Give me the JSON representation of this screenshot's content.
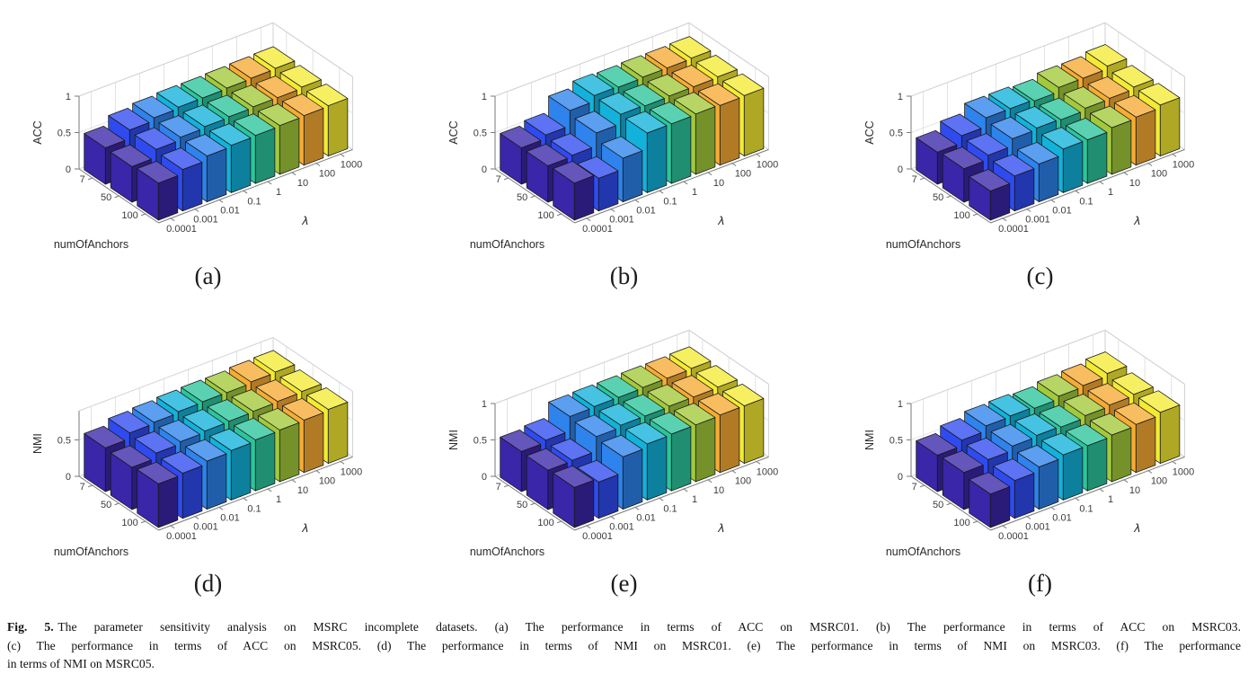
{
  "figure": {
    "label": "Fig. 5.",
    "caption_lines": [
      "The parameter sensitivity analysis on MSRC incomplete datasets. (a) The performance in terms of ACC on MSRC01. (b) The performance in terms of ACC on MSRC03.",
      "(c) The performance in terms of ACC on MSRC05. (d) The performance in terms of NMI on MSRC01. (e) The performance in terms of NMI on MSRC03. (f) The performance",
      "in terms of NMI on MSRC05."
    ]
  },
  "panels": [
    {
      "label": "(a)",
      "metric": "ACC",
      "dataset": "MSRC01"
    },
    {
      "label": "(b)",
      "metric": "ACC",
      "dataset": "MSRC03"
    },
    {
      "label": "(c)",
      "metric": "ACC",
      "dataset": "MSRC05"
    },
    {
      "label": "(d)",
      "metric": "NMI",
      "dataset": "MSRC01"
    },
    {
      "label": "(e)",
      "metric": "NMI",
      "dataset": "MSRC03"
    },
    {
      "label": "(f)",
      "metric": "NMI",
      "dataset": "MSRC05"
    }
  ],
  "colors": {
    "bar_palette": [
      "#3a26a8",
      "#2f4bf0",
      "#2e83ec",
      "#12b2da",
      "#2cc59b",
      "#a2c93a",
      "#f6ab33",
      "#f3ea34"
    ],
    "grid": "#e3e3e3",
    "box_light": "#d2d2d2",
    "box_dark": "#7a7a7a",
    "tick_text": "#3c3c3c",
    "label_text": "#2a2a2a",
    "bar_edge": "#161616",
    "background": "#ffffff"
  },
  "chart_data": [
    {
      "type": "bar",
      "projection": "3d",
      "panel": "(a)",
      "title": "ACC on MSRC01",
      "xlabel": "λ",
      "x_categories": [
        "0.0001",
        "0.001",
        "0.01",
        "0.1",
        "1",
        "10",
        "100",
        "1000"
      ],
      "ylabel": "numOfAnchors",
      "y_categories": [
        "7",
        "50",
        "100"
      ],
      "zlabel": "ACC",
      "zlim": [
        0,
        1
      ],
      "z_ticks": [
        "0",
        "0.5",
        "1"
      ],
      "values_note": "values[xIndex][yIndex] = bar height",
      "values": [
        [
          0.5,
          0.49,
          0.51
        ],
        [
          0.62,
          0.6,
          0.57
        ],
        [
          0.66,
          0.64,
          0.63
        ],
        [
          0.68,
          0.66,
          0.65
        ],
        [
          0.68,
          0.67,
          0.66
        ],
        [
          0.69,
          0.68,
          0.67
        ],
        [
          0.7,
          0.68,
          0.68
        ],
        [
          0.71,
          0.7,
          0.69
        ]
      ]
    },
    {
      "type": "bar",
      "projection": "3d",
      "panel": "(b)",
      "title": "ACC on MSRC03",
      "xlabel": "λ",
      "x_categories": [
        "0.0001",
        "0.001",
        "0.01",
        "0.1",
        "1",
        "10",
        "100",
        "1000"
      ],
      "ylabel": "numOfAnchors",
      "y_categories": [
        "7",
        "50",
        "100"
      ],
      "zlabel": "ACC",
      "zlim": [
        0,
        1
      ],
      "z_ticks": [
        "0",
        "0.5",
        "1"
      ],
      "values": [
        [
          0.5,
          0.5,
          0.51
        ],
        [
          0.55,
          0.52,
          0.45
        ],
        [
          0.76,
          0.7,
          0.6
        ],
        [
          0.84,
          0.83,
          0.82
        ],
        [
          0.83,
          0.82,
          0.82
        ],
        [
          0.84,
          0.83,
          0.83
        ],
        [
          0.84,
          0.83,
          0.82
        ],
        [
          0.85,
          0.84,
          0.83
        ]
      ]
    },
    {
      "type": "bar",
      "projection": "3d",
      "panel": "(c)",
      "title": "ACC on MSRC05",
      "xlabel": "λ",
      "x_categories": [
        "0.0001",
        "0.001",
        "0.01",
        "0.1",
        "1",
        "10",
        "100",
        "1000"
      ],
      "ylabel": "numOfAnchors",
      "y_categories": [
        "7",
        "50",
        "100"
      ],
      "zlabel": "ACC",
      "zlim": [
        0,
        1
      ],
      "z_ticks": [
        "0",
        "0.5",
        "1"
      ],
      "values": [
        [
          0.44,
          0.46,
          0.4
        ],
        [
          0.54,
          0.52,
          0.48
        ],
        [
          0.66,
          0.62,
          0.52
        ],
        [
          0.66,
          0.64,
          0.6
        ],
        [
          0.64,
          0.63,
          0.6
        ],
        [
          0.7,
          0.66,
          0.64
        ],
        [
          0.7,
          0.67,
          0.66
        ],
        [
          0.74,
          0.7,
          0.7
        ]
      ]
    },
    {
      "type": "bar",
      "projection": "3d",
      "panel": "(d)",
      "title": "NMI on MSRC01",
      "xlabel": "λ",
      "x_categories": [
        "0.0001",
        "0.001",
        "0.01",
        "0.1",
        "1",
        "10",
        "100",
        "1000"
      ],
      "ylabel": "numOfAnchors",
      "y_categories": [
        "7",
        "50",
        "100"
      ],
      "zlabel": "NMI",
      "zlim": [
        0,
        0.9
      ],
      "z_ticks": [
        "0",
        "0.5"
      ],
      "values": [
        [
          0.6,
          0.58,
          0.6
        ],
        [
          0.68,
          0.65,
          0.62
        ],
        [
          0.7,
          0.68,
          0.66
        ],
        [
          0.72,
          0.7,
          0.68
        ],
        [
          0.73,
          0.71,
          0.7
        ],
        [
          0.73,
          0.72,
          0.71
        ],
        [
          0.75,
          0.73,
          0.72
        ],
        [
          0.76,
          0.74,
          0.74
        ]
      ]
    },
    {
      "type": "bar",
      "projection": "3d",
      "panel": "(e)",
      "title": "NMI on MSRC03",
      "xlabel": "λ",
      "x_categories": [
        "0.0001",
        "0.001",
        "0.01",
        "0.1",
        "1",
        "10",
        "100",
        "1000"
      ],
      "ylabel": "numOfAnchors",
      "y_categories": [
        "7",
        "50",
        "100"
      ],
      "zlabel": "NMI",
      "zlim": [
        0,
        1
      ],
      "z_ticks": [
        "0",
        "0.5",
        "1"
      ],
      "values": [
        [
          0.55,
          0.54,
          0.55
        ],
        [
          0.58,
          0.55,
          0.5
        ],
        [
          0.78,
          0.75,
          0.72
        ],
        [
          0.79,
          0.78,
          0.77
        ],
        [
          0.79,
          0.78,
          0.78
        ],
        [
          0.8,
          0.79,
          0.78
        ],
        [
          0.8,
          0.79,
          0.79
        ],
        [
          0.81,
          0.8,
          0.79
        ]
      ]
    },
    {
      "type": "bar",
      "projection": "3d",
      "panel": "(f)",
      "title": "NMI on MSRC05",
      "xlabel": "λ",
      "x_categories": [
        "0.0001",
        "0.001",
        "0.01",
        "0.1",
        "1",
        "10",
        "100",
        "1000"
      ],
      "ylabel": "numOfAnchors",
      "y_categories": [
        "7",
        "50",
        "100"
      ],
      "zlabel": "NMI",
      "zlim": [
        0,
        1
      ],
      "z_ticks": [
        "0",
        "0.5",
        "1"
      ],
      "values": [
        [
          0.5,
          0.51,
          0.46
        ],
        [
          0.58,
          0.56,
          0.52
        ],
        [
          0.65,
          0.62,
          0.58
        ],
        [
          0.66,
          0.64,
          0.62
        ],
        [
          0.64,
          0.63,
          0.62
        ],
        [
          0.68,
          0.66,
          0.64
        ],
        [
          0.7,
          0.68,
          0.66
        ],
        [
          0.74,
          0.7,
          0.7
        ]
      ]
    }
  ]
}
